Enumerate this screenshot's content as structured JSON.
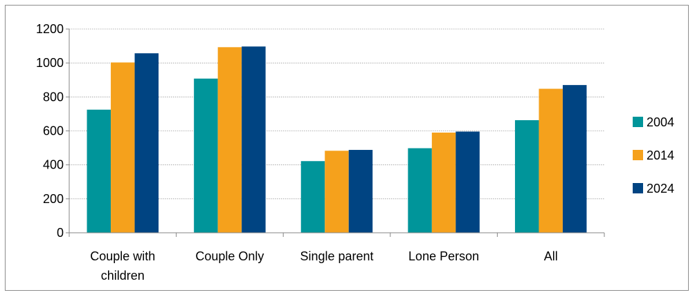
{
  "chart_data": {
    "type": "bar",
    "title": "",
    "xlabel": "",
    "ylabel": "",
    "categories": [
      [
        "Couple with",
        "children"
      ],
      [
        "Couple Only"
      ],
      [
        "Single parent"
      ],
      [
        "Lone Person"
      ],
      [
        "All"
      ]
    ],
    "series": [
      {
        "name": "2004",
        "color": "#00959a",
        "values": [
          725,
          908,
          422,
          498,
          663
        ]
      },
      {
        "name": "2014",
        "color": "#f5a11c",
        "values": [
          1003,
          1093,
          483,
          590,
          848
        ]
      },
      {
        "name": "2024",
        "color": "#004482",
        "values": [
          1057,
          1097,
          488,
          596,
          870
        ]
      }
    ],
    "ylim": [
      0,
      1200
    ],
    "yticks": [
      "0",
      "200",
      "400",
      "600",
      "800",
      "1000",
      "1200"
    ],
    "grid": true,
    "legend": "right"
  }
}
